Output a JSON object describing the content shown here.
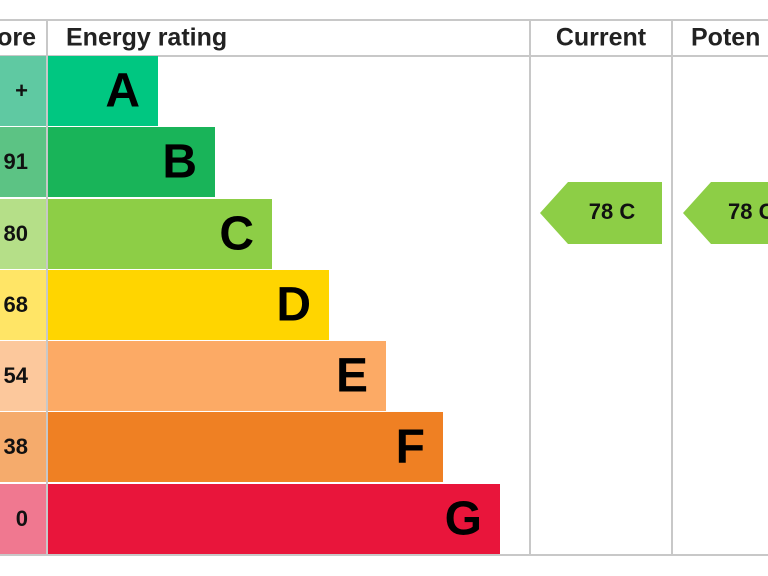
{
  "header": {
    "score": "ore",
    "rating": "Energy rating",
    "current": "Current",
    "potential": "Poten"
  },
  "bands": [
    {
      "score": "+",
      "letter": "A"
    },
    {
      "score": "91",
      "letter": "B"
    },
    {
      "score": "80",
      "letter": "C"
    },
    {
      "score": "68",
      "letter": "D"
    },
    {
      "score": "54",
      "letter": "E"
    },
    {
      "score": "38",
      "letter": "F"
    },
    {
      "score": "0",
      "letter": "G"
    }
  ],
  "current": "78 C",
  "potential": "78 C"
}
